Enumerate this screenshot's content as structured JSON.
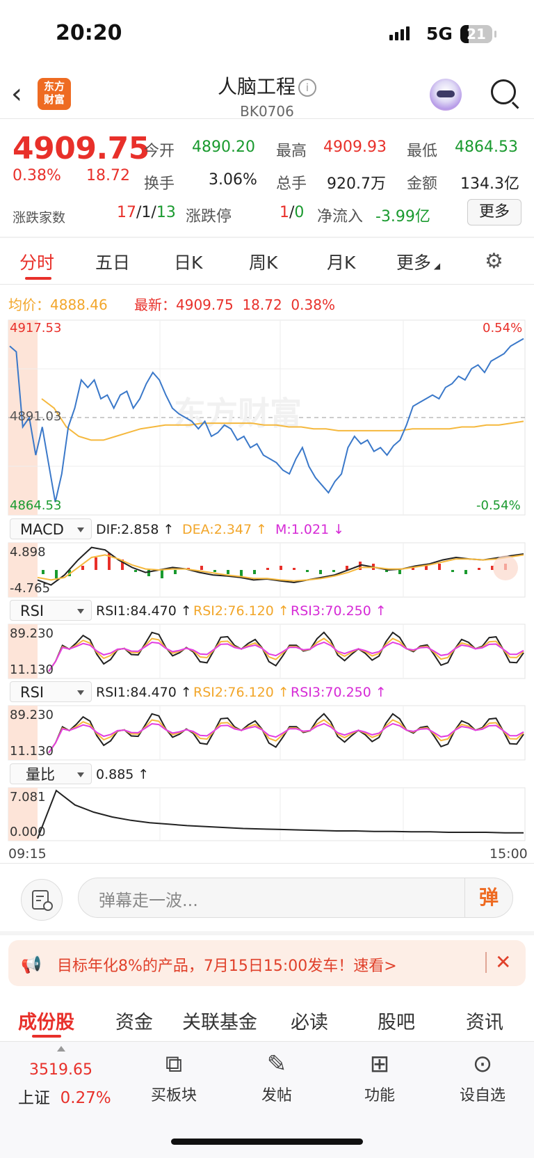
{
  "status": {
    "time": "20:20",
    "network": "5G",
    "battery": "21"
  },
  "header": {
    "logo_line1": "东方",
    "logo_line2": "财富",
    "title": "人脑工程",
    "info_icon": "info-icon",
    "code": "BK0706"
  },
  "quote": {
    "price": "4909.75",
    "change_pct": "0.38%",
    "change": "18.72",
    "open_label": "今开",
    "open": "4890.20",
    "high_label": "最高",
    "high": "4909.93",
    "low_label": "最低",
    "low": "4864.53",
    "turnover_label": "换手",
    "turnover": "3.06%",
    "volume_label": "总手",
    "volume": "920.7万",
    "amount_label": "金额",
    "amount": "134.3亿",
    "breadth_label": "涨跌家数",
    "breadth_up": "17",
    "breadth_flat": "1",
    "breadth_down": "13",
    "limit_label": "涨跌停",
    "limit_up": "1",
    "limit_down": "0",
    "inflow_label": "净流入",
    "inflow": "-3.99亿",
    "more": "更多"
  },
  "ktabs": [
    "分时",
    "五日",
    "日K",
    "周K",
    "月K",
    "更多"
  ],
  "legend": {
    "avg_label": "均价：",
    "avg": "4888.46",
    "last_label": "最新：",
    "last": "4909.75",
    "chg": "18.72",
    "pct": "0.38%"
  },
  "chart_labels": {
    "max": "4917.53",
    "mid": "4891.03",
    "min": "4864.53",
    "max_pct": "0.54%",
    "min_pct": "-0.54%",
    "time_start": "09:15",
    "time_end": "15:00"
  },
  "indicators": {
    "macd": {
      "name": "MACD",
      "dif": "DIF:2.858 ↑",
      "dea": "DEA:2.347 ↑",
      "m": "M:1.021 ↓",
      "top": "4.898",
      "bottom": "-4.765"
    },
    "rsi1": {
      "name": "RSI",
      "r1": "RSI1:84.470 ↑",
      "r2": "RSI2:76.120 ↑",
      "r3": "RSI3:70.250 ↑",
      "top": "89.230",
      "bottom": "11.130"
    },
    "rsi2": {
      "name": "RSI",
      "r1": "RSI1:84.470 ↑",
      "r2": "RSI2:76.120 ↑",
      "r3": "RSI3:70.250 ↑",
      "top": "89.230",
      "bottom": "11.130"
    },
    "vr": {
      "name": "量比",
      "value": "0.885 ↑",
      "top": "7.081",
      "bottom": "0.000"
    }
  },
  "danmu": {
    "placeholder": "弹幕走一波...",
    "button": "弹"
  },
  "banner": {
    "text": "目标年化8%的产品，7月15日15:00发车！速看>",
    "close": "✕"
  },
  "btabs": [
    "成份股",
    "资金",
    "关联基金",
    "必读",
    "股吧",
    "资讯"
  ],
  "bottom": {
    "index_value": "3519.65",
    "index_name": "上证",
    "index_pct": "0.27%",
    "items": [
      {
        "label": "买板块",
        "icon": "buy-sector-icon"
      },
      {
        "label": "发帖",
        "icon": "post-icon"
      },
      {
        "label": "功能",
        "icon": "function-icon"
      },
      {
        "label": "设自选",
        "icon": "add-watchlist-icon"
      }
    ]
  },
  "colors": {
    "up": "#e8302a",
    "down": "#1a9a2f",
    "avg_line": "#f5b83d",
    "price_line": "#3a78c9",
    "accent": "#ee6b22"
  }
}
